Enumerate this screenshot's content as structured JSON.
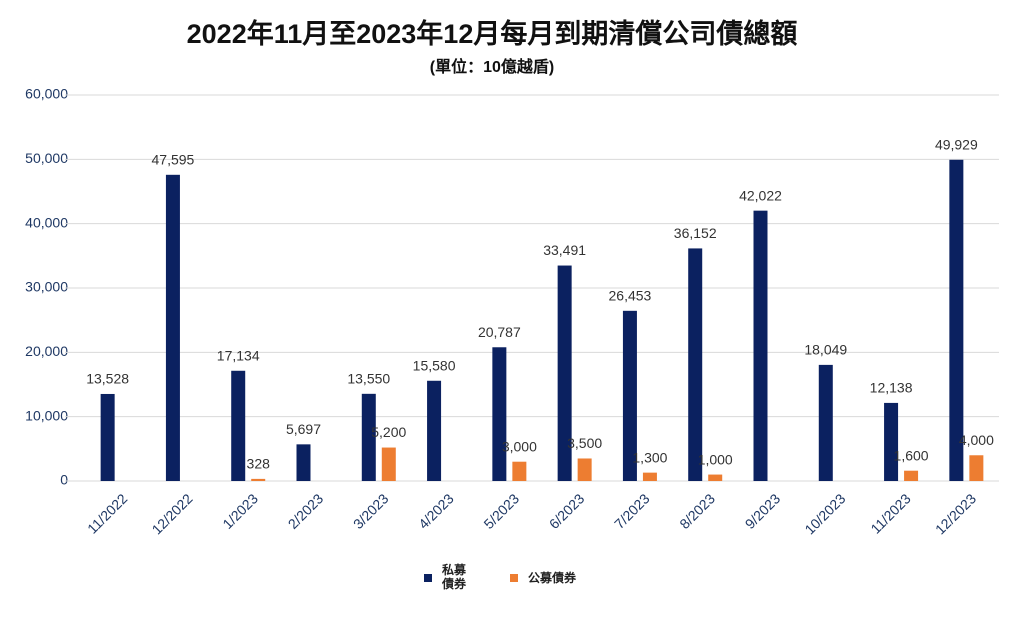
{
  "chart_data": {
    "type": "bar",
    "title": "2022年11月至2023年12月每月到期清償公司債總額",
    "subtitle": "(單位：10億越盾)",
    "categories": [
      "11/2022",
      "12/2022",
      "1/2023",
      "2/2023",
      "3/2023",
      "4/2023",
      "5/2023",
      "6/2023",
      "7/2023",
      "8/2023",
      "9/2023",
      "10/2023",
      "11/2023",
      "12/2023"
    ],
    "series": [
      {
        "name": "私募債券",
        "color": "#0b2160",
        "values": [
          13528,
          47595,
          17134,
          5697,
          13550,
          15580,
          20787,
          33491,
          26453,
          36152,
          42022,
          18049,
          12138,
          49929
        ],
        "value_labels": [
          "13,528",
          "47,595",
          "17,134",
          "5,697",
          "13,550",
          "15,580",
          "20,787",
          "33,491",
          "26,453",
          "36,152",
          "42,022",
          "18,049",
          "12,138",
          "49,929"
        ]
      },
      {
        "name": "公募債券",
        "color": "#ed7d31",
        "values": [
          null,
          null,
          328,
          null,
          5200,
          null,
          3000,
          3500,
          1300,
          1000,
          null,
          null,
          1600,
          4000
        ],
        "value_labels": [
          null,
          null,
          "328",
          null,
          "5,200",
          null,
          "3,000",
          "3,500",
          "1,300",
          "1,000",
          null,
          null,
          "1,600",
          "4,000"
        ]
      }
    ],
    "ylim": [
      0,
      60000
    ],
    "yticks": [
      0,
      {
        "value": 10000,
        "label": "10,000"
      },
      {
        "value": 20000,
        "label": "20,000"
      },
      {
        "value": 30000,
        "label": "30,000"
      },
      {
        "value": 40000,
        "label": "40,000"
      },
      {
        "value": 50000,
        "label": "50,000"
      },
      {
        "value": 60000,
        "label": "60,000"
      }
    ],
    "grid": true,
    "legend": "bottom"
  }
}
